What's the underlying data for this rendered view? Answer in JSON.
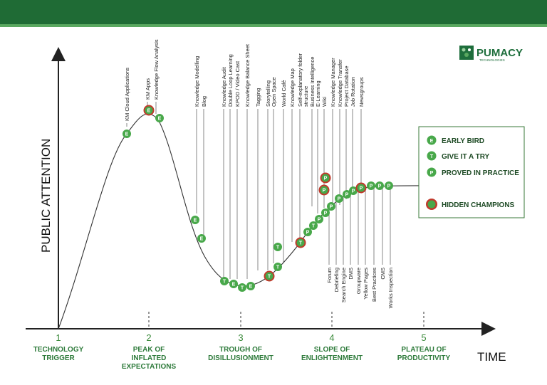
{
  "brand": {
    "name": "PUMACY",
    "tagline": "TECHNOLOGIES"
  },
  "axes": {
    "y_title": "PUBLIC ATTENTION",
    "x_title": "TIME"
  },
  "phases": [
    {
      "num": "1",
      "lines": [
        "TECHNOLOGY",
        "TRIGGER"
      ]
    },
    {
      "num": "2",
      "lines": [
        "PEAK OF",
        "INFLATED",
        "EXPECTATIONS"
      ]
    },
    {
      "num": "3",
      "lines": [
        "TROUGH OF",
        "DISILLUSIONMENT"
      ]
    },
    {
      "num": "4",
      "lines": [
        "SLOPE OF",
        "ENLIGHTENMENT"
      ]
    },
    {
      "num": "5",
      "lines": [
        "PLATEAU OF",
        "PRODUCTIVITY"
      ]
    }
  ],
  "legend": [
    {
      "key": "E",
      "label": "EARLY BIRD",
      "type": "plain"
    },
    {
      "key": "T",
      "label": "GIVE IT A TRY",
      "type": "plain"
    },
    {
      "key": "P",
      "label": "PROVED IN PRACTICE",
      "type": "plain"
    },
    {
      "key": "",
      "label": "HIDDEN CHAMPIONS",
      "type": "champion"
    }
  ],
  "top_labels": [
    [
      "KM Cloud Applications"
    ],
    [
      "KM Apps"
    ],
    [
      "Knowledge Flow Analysis"
    ],
    [
      "Knowledge Modelling"
    ],
    [
      "Blog"
    ],
    [
      "Knowledge Audit"
    ],
    [
      "Double Loop Learning"
    ],
    [
      "KPOD / Video Cast"
    ],
    [
      "Knowledge Balance Sheet"
    ],
    [
      "Tagging"
    ],
    [
      "Storytelling"
    ],
    [
      "Open Space"
    ],
    [
      "World Café"
    ],
    [
      "Knowledge Map"
    ],
    [
      "Self-explanatory folder",
      "structure"
    ],
    [
      "Business Intelligence"
    ],
    [
      "E-Learning"
    ],
    [
      "Wiki"
    ],
    [
      "Knowledge Manager"
    ],
    [
      "Knowledge Transfer"
    ],
    [
      "Project Database"
    ],
    [
      "Job Rotation"
    ],
    [
      "Newsgroups"
    ]
  ],
  "bottom_labels": [
    "Forum",
    "Debriefing",
    "Search Engine",
    "DMS",
    "Groupware",
    "Yellow Pages",
    "Best Practices",
    "CMS",
    "Works Inspection"
  ],
  "markers": [
    {
      "key": "E",
      "champion": false
    },
    {
      "key": "E",
      "champion": true
    },
    {
      "key": "E",
      "champion": false
    },
    {
      "key": "E",
      "champion": false
    },
    {
      "key": "E",
      "champion": false
    },
    {
      "key": "T",
      "champion": false
    },
    {
      "key": "E",
      "champion": false
    },
    {
      "key": "T",
      "champion": false
    },
    {
      "key": "E",
      "champion": false
    },
    {
      "key": "T",
      "champion": true
    },
    {
      "key": "T",
      "champion": false
    },
    {
      "key": "T",
      "champion": false
    },
    {
      "key": "T",
      "champion": true
    },
    {
      "key": "P",
      "champion": false
    },
    {
      "key": "T",
      "champion": false
    },
    {
      "key": "P",
      "champion": false
    },
    {
      "key": "P",
      "champion": false
    },
    {
      "key": "P",
      "champion": false
    },
    {
      "key": "P",
      "champion": true
    },
    {
      "key": "P",
      "champion": true
    },
    {
      "key": "P",
      "champion": false
    },
    {
      "key": "P",
      "champion": false
    },
    {
      "key": "P",
      "champion": false
    },
    {
      "key": "P",
      "champion": true
    },
    {
      "key": "P",
      "champion": false
    },
    {
      "key": "P",
      "champion": false
    },
    {
      "key": "P",
      "champion": false
    }
  ],
  "colors": {
    "banner": "#1f6b35",
    "green": "#48a84a",
    "champion_ring": "#c0392b",
    "phase_text": "#2d7a3a"
  }
}
